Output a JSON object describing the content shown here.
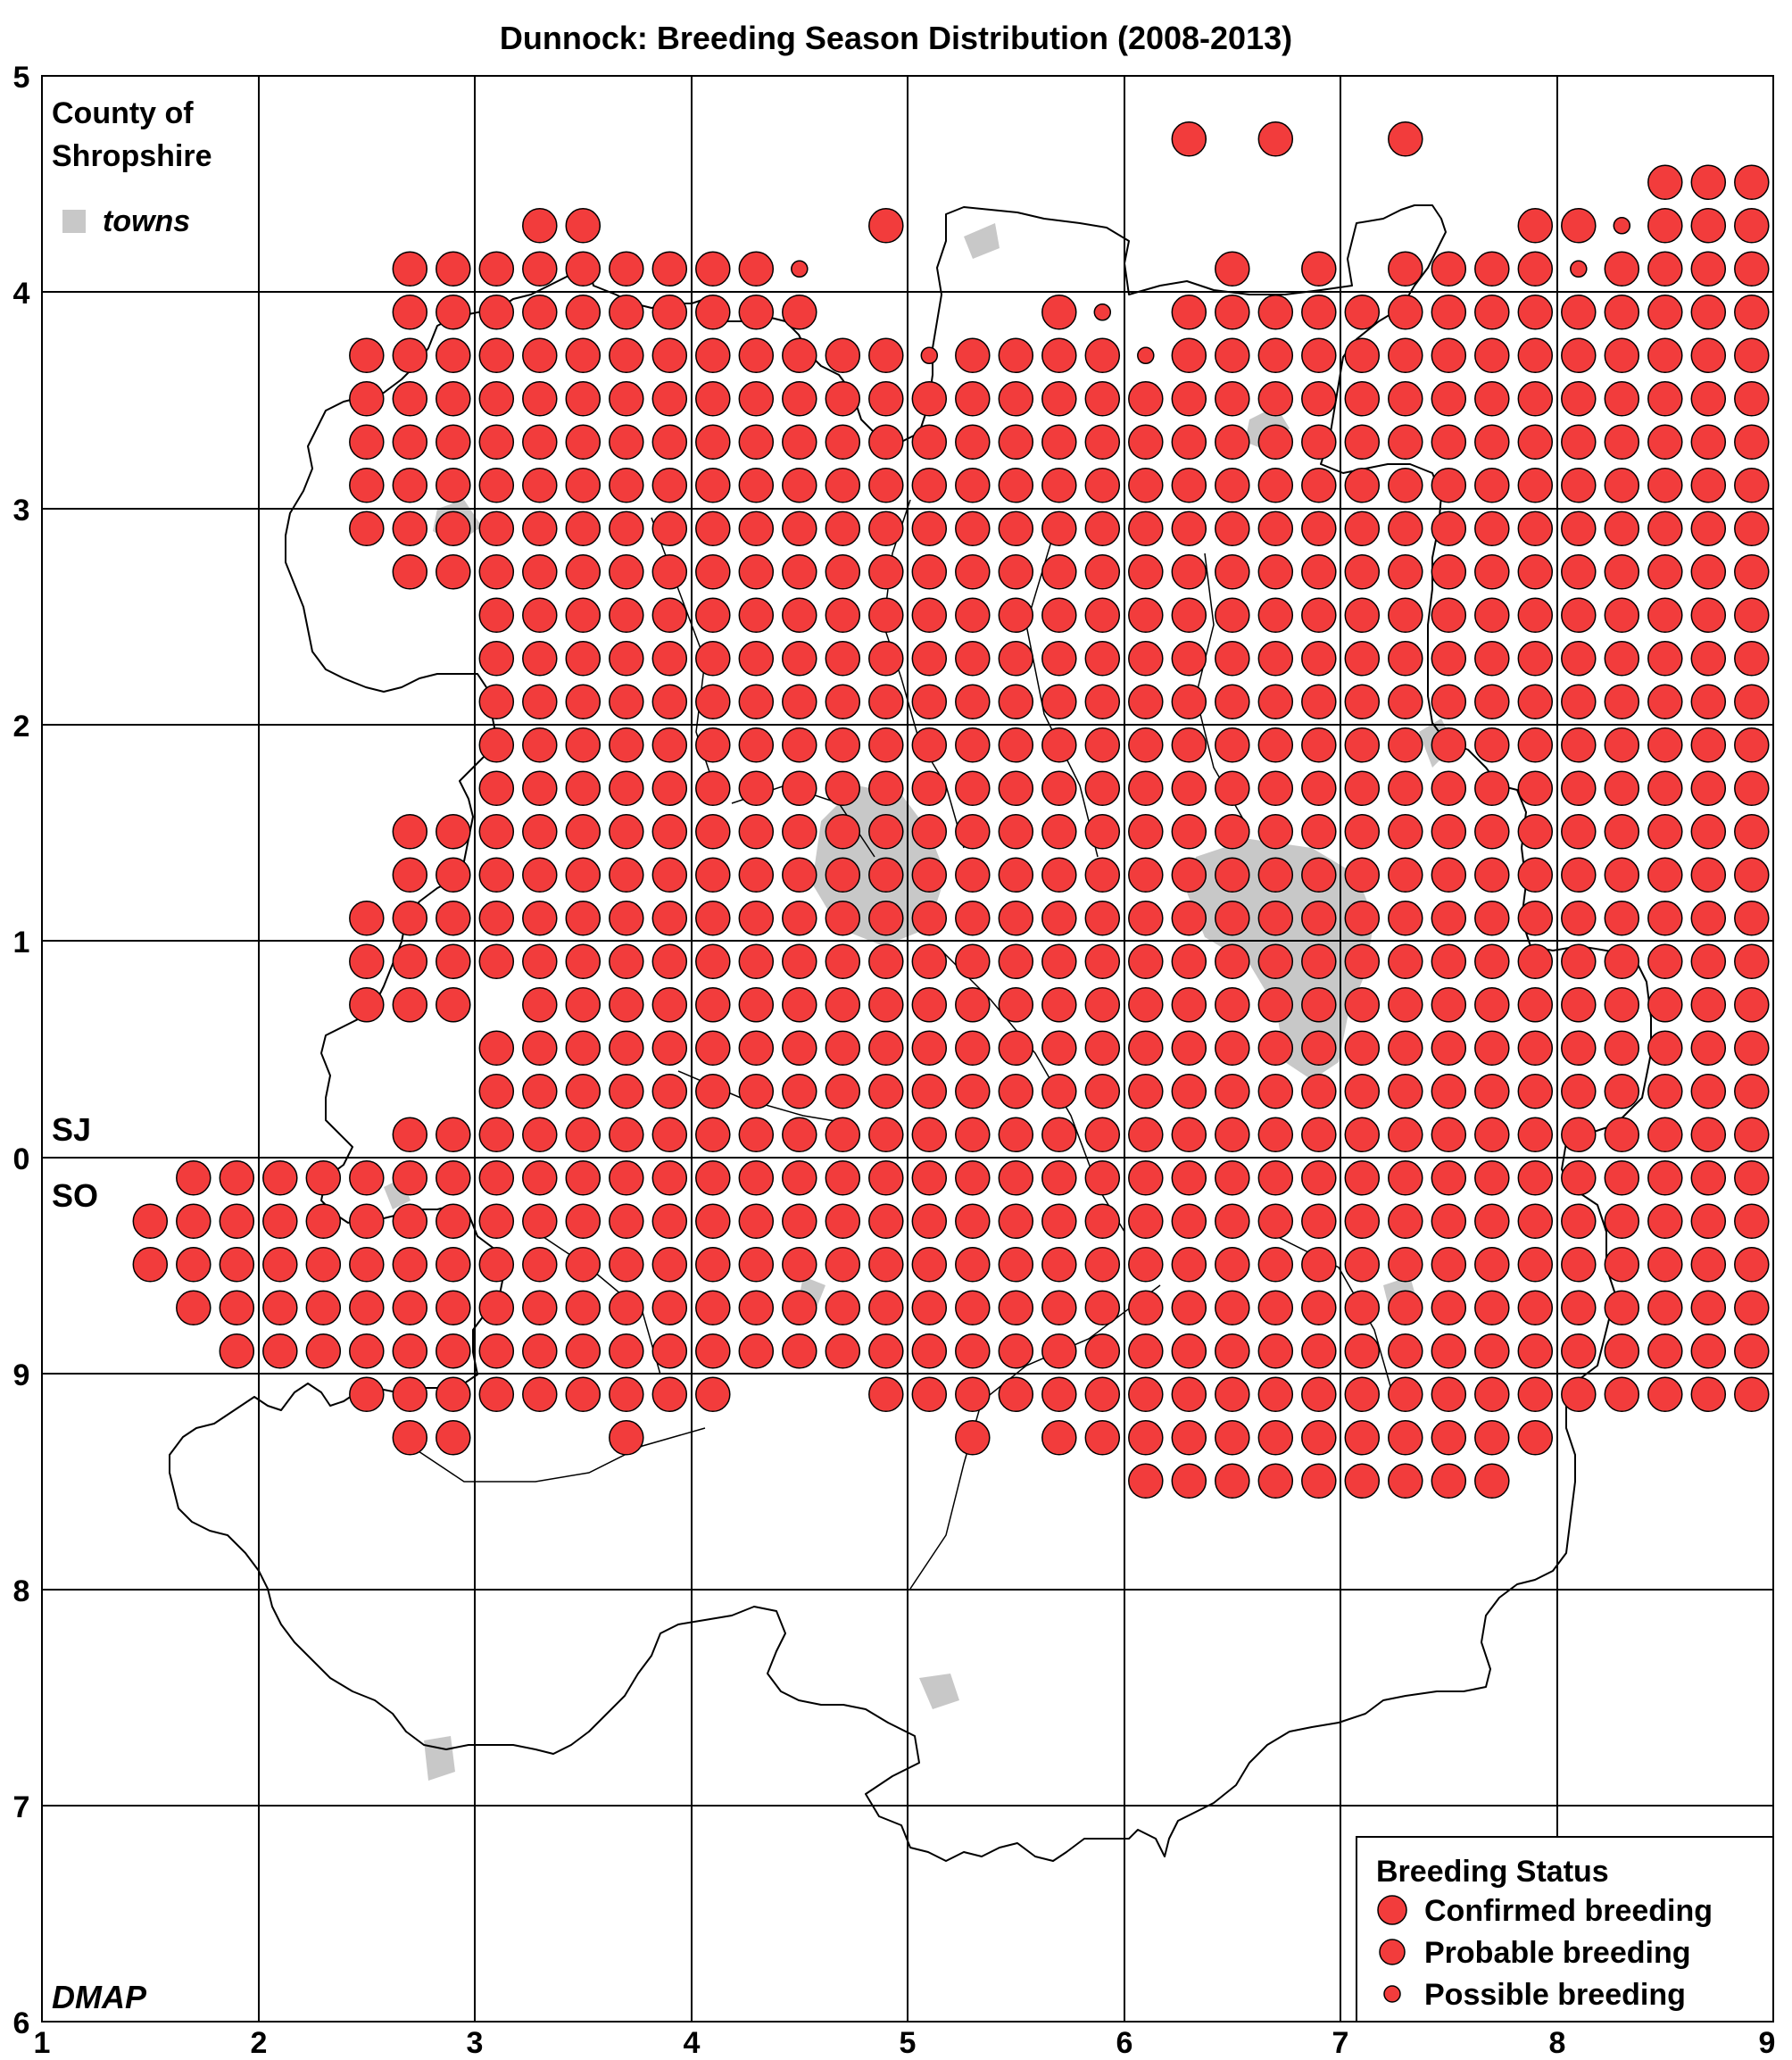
{
  "title": "Dunnock: Breeding Season Distribution (2008-2013)",
  "county_label_line1": "County of",
  "county_label_line2": "Shropshire",
  "towns_label": "towns",
  "grid_label_north": "SJ",
  "grid_label_south": "SO",
  "credit": "DMAP",
  "legend": {
    "title": "Breeding Status",
    "items": [
      {
        "label": "Confirmed breeding",
        "status": "confirmed"
      },
      {
        "label": "Probable breeding",
        "status": "probable"
      },
      {
        "label": "Possible breeding",
        "status": "possible"
      }
    ]
  },
  "axis": {
    "x_ticks": [
      "1",
      "2",
      "3",
      "4",
      "5",
      "6",
      "7",
      "8",
      "9"
    ],
    "y_ticks": [
      "5",
      "4",
      "3",
      "2",
      "1",
      "0",
      "9",
      "8",
      "7",
      "6"
    ]
  },
  "colors": {
    "dot_fill": "#f23c3c",
    "dot_stroke": "#000000",
    "town_fill": "#c8c8c8",
    "grid": "#000000"
  },
  "chart_data": {
    "type": "scatter",
    "grid_system": "OS 10km squares SJ (north) / SO (south), tetrad resolution",
    "x_range": [
      1,
      9
    ],
    "y_range_top_to_bottom": [
      "5 (SJ)",
      "6 (SO)"
    ],
    "note_status_codes": "C = Confirmed breeding, P = Probable breeding, p = Possible breeding, . = no record",
    "tetrad_rows_north_to_south": [
      "...................................................",
      "..........................C.C..C..........C........",
      ".....................................CCCCC.C.......",
      "...........CC......C..............CCpCCCCCCCCC.p...",
      "........CCCCCCCCCp.........C.C.CCCCpCCCCCC.........",
      "........CCCCCCCCCC.....Cp.CCCCCCCCCCCCCCCCCC.......",
      ".......CCCCCCCCCCCCCpCCCCpCCCCCCCCCCCCCCCCC........",
      ".......CCCCCCCCCCCCCCCCCCCCCCCCCCCCCCCCCCCCCC......",
      ".......CCCCCCCCCCCCCCCCCCCCCCCCCCCCCCCCCCCCCC......",
      ".......CCCCCCCCCCCCCCCCCCCCCCCCCCCCCCCCCCCCCC......",
      ".......CCCCCCCCCCCCCCCCCCCCCCCCCCCCCCCCCCCCC.......",
      "........CCCCCCCCCCCCCCCCCCCCCCCCCCCCCCCCCCCCCCC....",
      "..........CCCCCCCCCCCCCCCCCCCCCCCCCCCCCCCCCCCCCCC..",
      "..........CCCCCCCCCCCCCCCCCCCCCCCCCCCCCCCCCCCCCCC..",
      "..........CCCCCCCCCCCCCCCCCCCCCCCCCCCCCCCCCCCCCCC..",
      "..........CCCCCCCCCCCCCCCCCCCCCCCCCCCCCCCCCCCCCCCCC",
      "..........CCCCCCCCCCCCCCCCCCCCCCCCCCCCCCCCCCCCCCCCC",
      "........CCCCCCCCCCCCCCCCCCCCCCCCCCCCCCCCCCCCCCCCCCC",
      "........CCCCCCCCCCCCCCCCCCCCCCCCCCCCCCCCCCCCCCCCCCC",
      ".......CCCCCCCCCCCCCCCCCCCCCCCCCCCCCCCCCCCCCCCCCCC.",
      ".......CCCCCCCCCCCCCCCCCCCCCCCCCCCCCCCCCCCCCCCCCCC.",
      ".......CCC.CCCCCCCCCCCCCCCCCCCCCCCCCCCCCCCCCCCCCCCC",
      "..........CCCCCCCCCCCCCCCCCCCCCCCCCCCCCCCCCCCCCCCCC",
      "..........CCCCCCCCCCCCCCCCCCCCCCCCCCCCCCCCCCCCCCCC.",
      "........CCCCCCCCCCCCCCCCCCCCCCCCCCCCCCCCCCCCCCCCC..",
      "...CCCCCCCCCCCCCCCCCCCCCCCCCCCCCCCCCCCCCCCCCCCCC...",
      "..CCCCCCCCCCCCCCCCCCCCCCCCCCCCCCCCCCCCCCCCCCCCCC...",
      "..CCCCCCCCCCCCCCCCCCCCCCCCCCCCCCCCCCCCCCCCCCCCC....",
      "...CCCCCCCCCCCCCCCCCCCCCCCCCCCCCCCCCCCCCCCCCCCC....",
      "....CCCCCCCCCCCCCCCCCCCCCCCCCCCCCCCCCCCCCCCCCC.....",
      ".......CCCCCCCCC...CCCCCCCCCCCCCCCCCCCCCC..........",
      "........CC...C.......C.CCCCCCCCCCCC................",
      ".........................CCCCCCCCC................."
    ]
  }
}
